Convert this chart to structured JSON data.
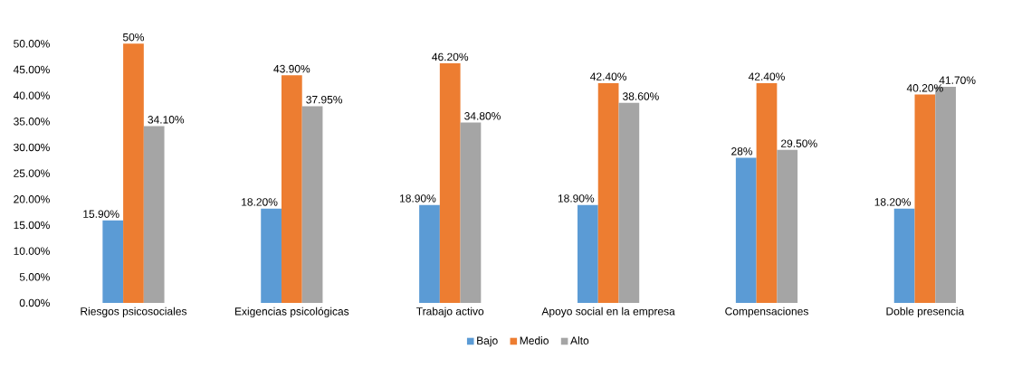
{
  "chart_data": {
    "type": "bar",
    "categories": [
      "Riesgos psicosociales",
      "Exigencias psicológicas",
      "Trabajo activo",
      "Apoyo social en la empresa",
      "Compensaciones",
      "Doble presencia"
    ],
    "series": [
      {
        "name": "Bajo",
        "color": "#5b9bd5",
        "values": [
          15.9,
          18.2,
          18.9,
          18.9,
          28,
          18.2
        ],
        "value_labels": [
          "15.90%",
          "18.20%",
          "18.90%",
          "18.90%",
          "28%",
          "18.20%"
        ]
      },
      {
        "name": "Medio",
        "color": "#ed7d31",
        "values": [
          50,
          43.9,
          46.2,
          42.4,
          42.4,
          40.2
        ],
        "value_labels": [
          "50%",
          "43.90%",
          "46.20%",
          "42.40%",
          "42.40%",
          "40.20%"
        ]
      },
      {
        "name": "Alto",
        "color": "#a5a5a5",
        "values": [
          34.1,
          37.95,
          34.8,
          38.6,
          29.5,
          41.7
        ],
        "value_labels": [
          "34.10%",
          "37.95%",
          "34.80%",
          "38.60%",
          "29.50%",
          "41.70%"
        ]
      }
    ],
    "ylim": [
      0,
      50
    ],
    "yticks": [
      {
        "value": 0,
        "label": "0.00%"
      },
      {
        "value": 5,
        "label": "5.00%"
      },
      {
        "value": 10,
        "label": "10.00%"
      },
      {
        "value": 15,
        "label": "15.00%"
      },
      {
        "value": 20,
        "label": "20.00%"
      },
      {
        "value": 25,
        "label": "25.00%"
      },
      {
        "value": 30,
        "label": "30.00%"
      },
      {
        "value": 35,
        "label": "35.00%"
      },
      {
        "value": 40,
        "label": "40.00%"
      },
      {
        "value": 45,
        "label": "45.00%"
      },
      {
        "value": 50,
        "label": "50.00%"
      }
    ],
    "grid": false,
    "legend": "bottom"
  }
}
